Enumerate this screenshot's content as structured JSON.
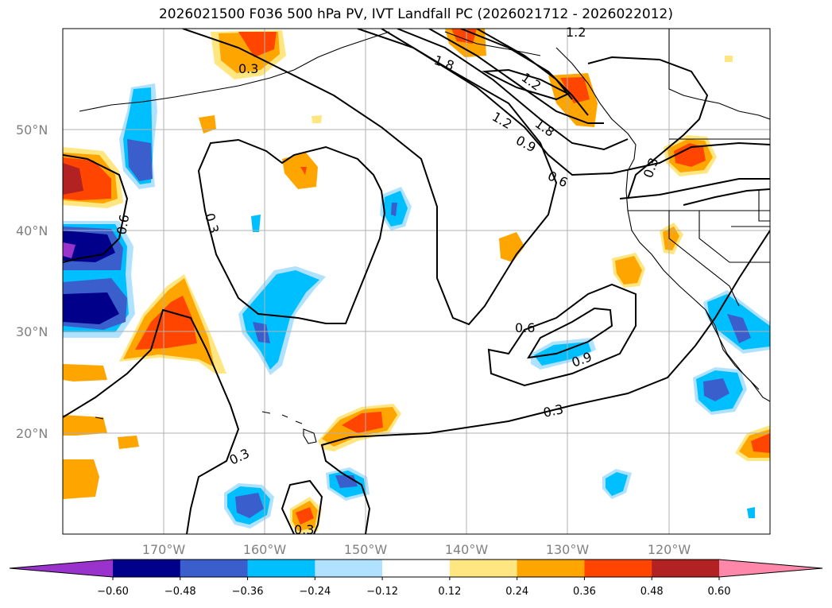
{
  "title": "2026021500 F036 500 hPa PV, IVT Landfall PC (2026021712 - 2026022012)",
  "map": {
    "lat_ticks": [
      "50°N",
      "40°N",
      "30°N",
      "20°N"
    ],
    "lon_ticks": [
      "170°W",
      "160°W",
      "150°W",
      "140°W",
      "130°W",
      "120°W"
    ],
    "contour_labels": [
      "1.2",
      "1.8",
      "1.2",
      "1.8",
      "1.2",
      "0.9",
      "0.6",
      "0.6",
      "0.3",
      "0.3",
      "0.6",
      "0.9",
      "0.3",
      "0.3",
      "0.3",
      "0.3"
    ]
  },
  "colorbar": {
    "labels": [
      "−0.60",
      "−0.48",
      "−0.36",
      "−0.24",
      "−0.12",
      "0.12",
      "0.24",
      "0.36",
      "0.48",
      "0.60"
    ],
    "colors": [
      "#9933cc",
      "#00008b",
      "#3a5fcd",
      "#00bfff",
      "#b0e2ff",
      "#ffffff",
      "#ffe680",
      "#ffa500",
      "#ff4500",
      "#b22222",
      "#ff88aa"
    ]
  }
}
